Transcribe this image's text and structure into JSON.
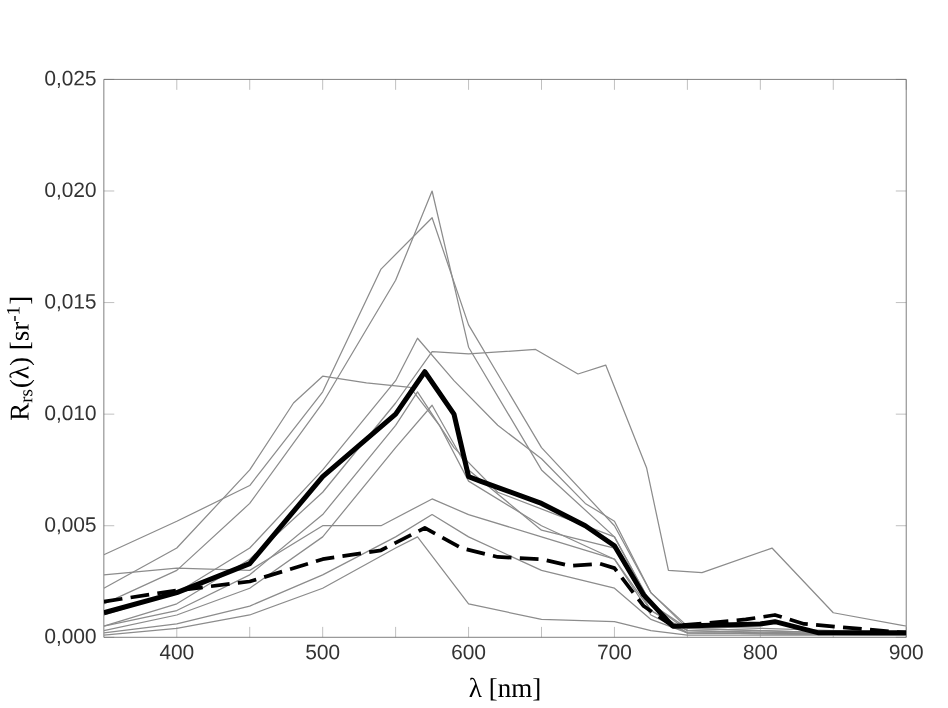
{
  "chart_data": {
    "type": "line",
    "xlabel": "λ [nm]",
    "ylabel": "R$_{rs}$(λ) [sr$^{-1}$]",
    "xlim": [
      350,
      900
    ],
    "ylim": [
      0,
      0.025
    ],
    "xticks": [
      400,
      {
        "value": 450,
        "label": null
      },
      500,
      {
        "value": 550,
        "label": null
      },
      600,
      {
        "value": 650,
        "label": null
      },
      700,
      {
        "value": 750,
        "label": null
      },
      800,
      {
        "value": 850,
        "label": null
      },
      900
    ],
    "yticks": [
      {
        "value": 0,
        "label": "0,000"
      },
      {
        "value": 0.005,
        "label": "0,005"
      },
      {
        "value": 0.01,
        "label": "0,010"
      },
      {
        "value": 0.015,
        "label": "0,015"
      },
      {
        "value": 0.02,
        "label": "0,020"
      },
      {
        "value": 0.025,
        "label": "0,025"
      }
    ],
    "grid": false,
    "marker": "none",
    "series": [
      {
        "color": "#8c8c8c",
        "line_style": "solid",
        "x": [
          350,
          400,
          450,
          500,
          550,
          575,
          600,
          650,
          700,
          725,
          750,
          800,
          850,
          900
        ],
        "values": [
          0.0015,
          0.003,
          0.006,
          0.0105,
          0.016,
          0.02,
          0.013,
          0.0075,
          0.0045,
          0.0015,
          0.0004,
          0.0003,
          0.0002,
          0.0002
        ]
      },
      {
        "color": "#8c8c8c",
        "line_style": "solid",
        "x": [
          350,
          400,
          450,
          500,
          540,
          575,
          600,
          650,
          700,
          725,
          750,
          800,
          850,
          900
        ],
        "values": [
          0.0037,
          0.0052,
          0.0068,
          0.011,
          0.0165,
          0.0188,
          0.014,
          0.0085,
          0.005,
          0.002,
          0.0005,
          0.0004,
          0.0003,
          0.0002
        ]
      },
      {
        "color": "#8c8c8c",
        "line_style": "solid",
        "x": [
          350,
          400,
          450,
          500,
          550,
          575,
          600,
          646,
          675,
          694,
          722,
          737,
          760,
          808,
          850,
          900
        ],
        "values": [
          0.0005,
          0.0015,
          0.0035,
          0.0065,
          0.0105,
          0.0128,
          0.0127,
          0.0129,
          0.0118,
          0.0122,
          0.0076,
          0.003,
          0.0029,
          0.004,
          0.0011,
          0.0005
        ]
      },
      {
        "color": "#8c8c8c",
        "line_style": "solid",
        "x": [
          350,
          400,
          450,
          480,
          500,
          530,
          560,
          580,
          600,
          650,
          700,
          725,
          750,
          800,
          900
        ],
        "values": [
          0.0022,
          0.004,
          0.0075,
          0.0105,
          0.0117,
          0.0114,
          0.0112,
          0.0095,
          0.007,
          0.005,
          0.0035,
          0.0012,
          0.0003,
          0.0002,
          0.0001
        ]
      },
      {
        "color": "#8c8c8c",
        "line_style": "solid",
        "x": [
          350,
          400,
          450,
          500,
          550,
          565,
          590,
          620,
          650,
          680,
          700,
          725,
          750,
          800,
          900
        ],
        "values": [
          0.001,
          0.002,
          0.004,
          0.0075,
          0.0115,
          0.0134,
          0.0115,
          0.0095,
          0.008,
          0.006,
          0.0052,
          0.002,
          0.0004,
          0.0003,
          0.0001
        ]
      },
      {
        "color": "#8c8c8c",
        "line_style": "solid",
        "x": [
          350,
          400,
          450,
          500,
          550,
          565,
          590,
          620,
          660,
          700,
          725,
          750,
          900
        ],
        "values": [
          0.0005,
          0.0012,
          0.0028,
          0.0055,
          0.0095,
          0.011,
          0.0085,
          0.0065,
          0.0055,
          0.0045,
          0.0015,
          0.0003,
          0.0001
        ]
      },
      {
        "color": "#8c8c8c",
        "line_style": "solid",
        "x": [
          350,
          400,
          450,
          500,
          550,
          575,
          600,
          650,
          700,
          725,
          750,
          900
        ],
        "values": [
          0.0003,
          0.001,
          0.0022,
          0.0045,
          0.0085,
          0.0104,
          0.0075,
          0.0048,
          0.004,
          0.0012,
          0.0002,
          0.0001
        ]
      },
      {
        "color": "#8c8c8c",
        "line_style": "solid",
        "x": [
          350,
          400,
          450,
          500,
          540,
          575,
          600,
          650,
          700,
          725,
          750,
          900
        ],
        "values": [
          0.0028,
          0.0031,
          0.003,
          0.005,
          0.005,
          0.0062,
          0.0055,
          0.0045,
          0.0035,
          0.001,
          0.0002,
          0.0001
        ]
      },
      {
        "color": "#8c8c8c",
        "line_style": "solid",
        "x": [
          350,
          400,
          450,
          500,
          550,
          575,
          600,
          650,
          700,
          725,
          750,
          900
        ],
        "values": [
          0.0002,
          0.0006,
          0.0014,
          0.0028,
          0.0045,
          0.0055,
          0.0045,
          0.003,
          0.0022,
          0.0008,
          0.0002,
          0.0001
        ]
      },
      {
        "color": "#8c8c8c",
        "line_style": "solid",
        "x": [
          350,
          400,
          450,
          500,
          550,
          565,
          600,
          650,
          700,
          725,
          750,
          900
        ],
        "values": [
          0.0001,
          0.0004,
          0.001,
          0.0022,
          0.004,
          0.0045,
          0.0015,
          0.0008,
          0.0007,
          0.0003,
          0.0001,
          0.0001
        ]
      },
      {
        "color": "#000000",
        "line_style": "dashed",
        "x": [
          350,
          400,
          450,
          500,
          540,
          570,
          595,
          620,
          650,
          670,
          690,
          700,
          720,
          740,
          790,
          810,
          830,
          900
        ],
        "values": [
          0.0016,
          0.0021,
          0.0025,
          0.0035,
          0.0039,
          0.0049,
          0.004,
          0.0036,
          0.0035,
          0.0032,
          0.0033,
          0.0031,
          0.0014,
          0.0005,
          0.0008,
          0.001,
          0.0006,
          0.0002
        ]
      },
      {
        "color": "#000000",
        "line_style": "solid",
        "x": [
          350,
          400,
          450,
          500,
          550,
          570,
          590,
          600,
          608,
          650,
          680,
          700,
          720,
          740,
          800,
          810,
          840,
          900
        ],
        "values": [
          0.0011,
          0.002,
          0.0033,
          0.0072,
          0.01,
          0.0119,
          0.01,
          0.0072,
          0.007,
          0.006,
          0.005,
          0.0041,
          0.0019,
          0.0005,
          0.0006,
          0.0007,
          0.0002,
          0.0002
        ]
      }
    ]
  }
}
